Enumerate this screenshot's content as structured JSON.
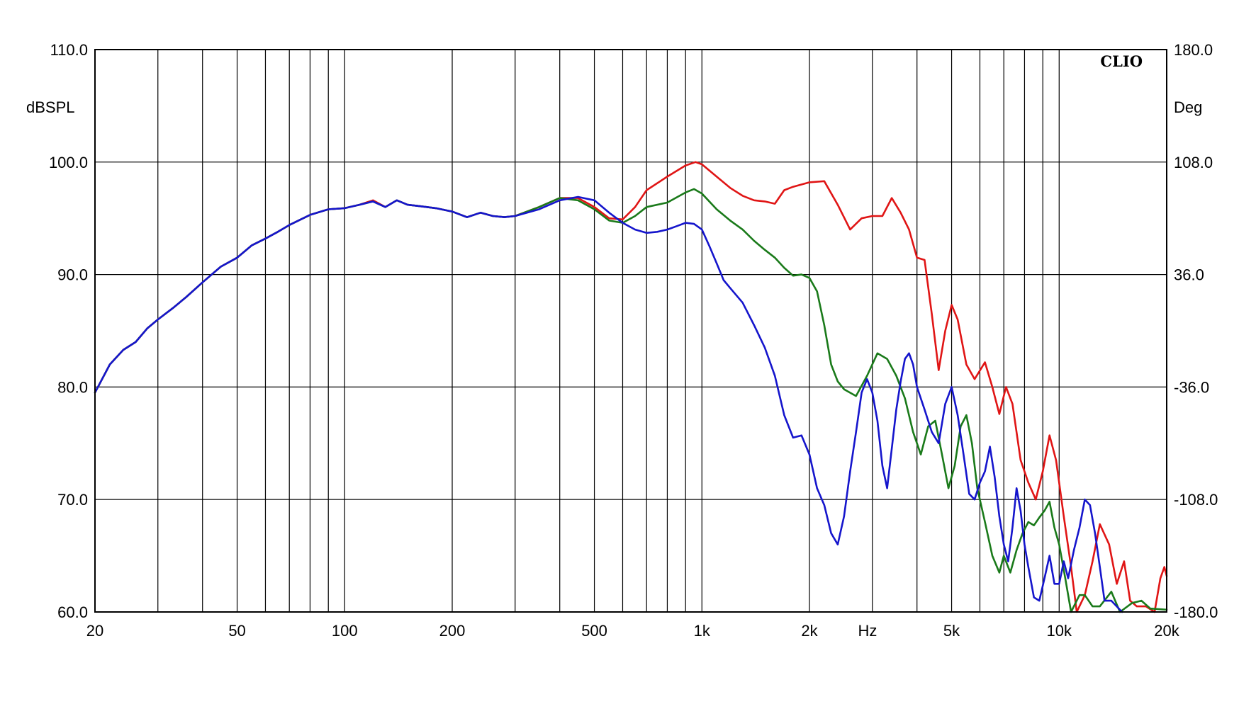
{
  "chart_data": {
    "type": "line",
    "title": "",
    "brand_label": "CLIO",
    "xlabel": "Hz",
    "ylabel_left": "dBSPL",
    "ylabel_right": "Deg",
    "x_scale": "log",
    "xlim": [
      20,
      20000
    ],
    "ylim": [
      60,
      110
    ],
    "ylim_right": [
      -180,
      180
    ],
    "grid": true,
    "x_ticks": [
      {
        "value": 20,
        "label": "20"
      },
      {
        "value": 50,
        "label": "50"
      },
      {
        "value": 100,
        "label": "100"
      },
      {
        "value": 200,
        "label": "200"
      },
      {
        "value": 500,
        "label": "500"
      },
      {
        "value": 1000,
        "label": "1k"
      },
      {
        "value": 2000,
        "label": "2k"
      },
      {
        "value": 5000,
        "label": "5k"
      },
      {
        "value": 10000,
        "label": "10k"
      },
      {
        "value": 20000,
        "label": "20k"
      }
    ],
    "y_ticks_left": [
      "60.0",
      "70.0",
      "80.0",
      "90.0",
      "100.0",
      "110.0"
    ],
    "y_ticks_right": [
      "-180.0",
      "-108.0",
      "-36.0",
      "36.0",
      "108.0",
      "180.0"
    ],
    "series": [
      {
        "color": "#e01515",
        "points": [
          [
            20,
            79.5
          ],
          [
            22,
            82
          ],
          [
            24,
            83.3
          ],
          [
            26,
            84
          ],
          [
            28,
            85.2
          ],
          [
            30,
            86
          ],
          [
            33,
            87
          ],
          [
            36,
            88
          ],
          [
            40,
            89.3
          ],
          [
            45,
            90.7
          ],
          [
            50,
            91.5
          ],
          [
            55,
            92.6
          ],
          [
            60,
            93.2
          ],
          [
            65,
            93.8
          ],
          [
            70,
            94.4
          ],
          [
            80,
            95.3
          ],
          [
            90,
            95.8
          ],
          [
            100,
            95.9
          ],
          [
            110,
            96.2
          ],
          [
            120,
            96.6
          ],
          [
            130,
            96
          ],
          [
            140,
            96.6
          ],
          [
            150,
            96.2
          ],
          [
            160,
            96.1
          ],
          [
            180,
            95.9
          ],
          [
            200,
            95.6
          ],
          [
            220,
            95.1
          ],
          [
            240,
            95.5
          ],
          [
            260,
            95.2
          ],
          [
            280,
            95.1
          ],
          [
            300,
            95.2
          ],
          [
            350,
            96
          ],
          [
            400,
            96.8
          ],
          [
            450,
            96.8
          ],
          [
            500,
            96
          ],
          [
            550,
            95
          ],
          [
            600,
            94.9
          ],
          [
            650,
            96
          ],
          [
            700,
            97.5
          ],
          [
            800,
            98.7
          ],
          [
            900,
            99.7
          ],
          [
            960,
            100
          ],
          [
            1000,
            99.8
          ],
          [
            1100,
            98.7
          ],
          [
            1200,
            97.7
          ],
          [
            1300,
            97
          ],
          [
            1400,
            96.6
          ],
          [
            1500,
            96.5
          ],
          [
            1600,
            96.3
          ],
          [
            1700,
            97.5
          ],
          [
            1800,
            97.8
          ],
          [
            2000,
            98.2
          ],
          [
            2200,
            98.3
          ],
          [
            2400,
            96.2
          ],
          [
            2600,
            94
          ],
          [
            2800,
            95
          ],
          [
            3000,
            95.2
          ],
          [
            3200,
            95.2
          ],
          [
            3400,
            96.8
          ],
          [
            3600,
            95.5
          ],
          [
            3800,
            94
          ],
          [
            4000,
            91.5
          ],
          [
            4200,
            91.3
          ],
          [
            4400,
            86.5
          ],
          [
            4600,
            81.5
          ],
          [
            4800,
            85
          ],
          [
            5000,
            87.3
          ],
          [
            5200,
            86
          ],
          [
            5500,
            82
          ],
          [
            5800,
            80.7
          ],
          [
            6200,
            82.2
          ],
          [
            6500,
            80
          ],
          [
            6800,
            77.6
          ],
          [
            7100,
            80
          ],
          [
            7400,
            78.5
          ],
          [
            7800,
            73.5
          ],
          [
            8200,
            71.5
          ],
          [
            8600,
            70
          ],
          [
            9000,
            72.5
          ],
          [
            9400,
            75.7
          ],
          [
            9800,
            73.5
          ],
          [
            10300,
            68.5
          ],
          [
            10800,
            64
          ],
          [
            11200,
            60
          ],
          [
            11800,
            61.5
          ],
          [
            12400,
            64.5
          ],
          [
            13000,
            67.8
          ],
          [
            13800,
            66
          ],
          [
            14500,
            62.5
          ],
          [
            15200,
            64.5
          ],
          [
            15800,
            61
          ],
          [
            16500,
            60.5
          ],
          [
            17500,
            60.5
          ],
          [
            18500,
            60
          ],
          [
            19200,
            63
          ],
          [
            19700,
            64
          ],
          [
            20000,
            63.2
          ]
        ]
      },
      {
        "color": "#1a7a1a",
        "points": [
          [
            20,
            79.5
          ],
          [
            22,
            82
          ],
          [
            24,
            83.3
          ],
          [
            26,
            84
          ],
          [
            28,
            85.2
          ],
          [
            30,
            86
          ],
          [
            33,
            87
          ],
          [
            36,
            88
          ],
          [
            40,
            89.3
          ],
          [
            45,
            90.7
          ],
          [
            50,
            91.5
          ],
          [
            55,
            92.6
          ],
          [
            60,
            93.2
          ],
          [
            65,
            93.8
          ],
          [
            70,
            94.4
          ],
          [
            80,
            95.3
          ],
          [
            90,
            95.8
          ],
          [
            100,
            95.9
          ],
          [
            110,
            96.2
          ],
          [
            120,
            96.5
          ],
          [
            130,
            96
          ],
          [
            140,
            96.6
          ],
          [
            150,
            96.2
          ],
          [
            160,
            96.1
          ],
          [
            180,
            95.9
          ],
          [
            200,
            95.6
          ],
          [
            220,
            95.1
          ],
          [
            240,
            95.5
          ],
          [
            260,
            95.2
          ],
          [
            280,
            95.1
          ],
          [
            300,
            95.2
          ],
          [
            350,
            96
          ],
          [
            400,
            96.8
          ],
          [
            450,
            96.6
          ],
          [
            500,
            95.8
          ],
          [
            550,
            94.8
          ],
          [
            600,
            94.6
          ],
          [
            650,
            95.2
          ],
          [
            700,
            96
          ],
          [
            800,
            96.4
          ],
          [
            900,
            97.3
          ],
          [
            950,
            97.6
          ],
          [
            1000,
            97.2
          ],
          [
            1100,
            95.8
          ],
          [
            1200,
            94.8
          ],
          [
            1300,
            94
          ],
          [
            1400,
            93
          ],
          [
            1500,
            92.2
          ],
          [
            1600,
            91.5
          ],
          [
            1700,
            90.6
          ],
          [
            1800,
            89.9
          ],
          [
            1900,
            90
          ],
          [
            2000,
            89.7
          ],
          [
            2100,
            88.5
          ],
          [
            2200,
            85.5
          ],
          [
            2300,
            82
          ],
          [
            2400,
            80.5
          ],
          [
            2500,
            79.8
          ],
          [
            2700,
            79.2
          ],
          [
            2900,
            81
          ],
          [
            3100,
            83
          ],
          [
            3300,
            82.5
          ],
          [
            3500,
            81
          ],
          [
            3700,
            79
          ],
          [
            3900,
            76
          ],
          [
            4100,
            74
          ],
          [
            4300,
            76.5
          ],
          [
            4500,
            77
          ],
          [
            4700,
            74
          ],
          [
            4900,
            71
          ],
          [
            5100,
            73
          ],
          [
            5300,
            76.5
          ],
          [
            5500,
            77.5
          ],
          [
            5700,
            75
          ],
          [
            5900,
            71
          ],
          [
            6200,
            68
          ],
          [
            6500,
            65
          ],
          [
            6800,
            63.5
          ],
          [
            7000,
            65
          ],
          [
            7300,
            63.5
          ],
          [
            7600,
            65.5
          ],
          [
            7900,
            67
          ],
          [
            8200,
            68
          ],
          [
            8500,
            67.7
          ],
          [
            8800,
            68.4
          ],
          [
            9100,
            69
          ],
          [
            9400,
            69.8
          ],
          [
            9700,
            67.5
          ],
          [
            10000,
            66
          ],
          [
            10400,
            63
          ],
          [
            10800,
            60
          ],
          [
            11400,
            61.5
          ],
          [
            11800,
            61.5
          ],
          [
            12400,
            60.5
          ],
          [
            13000,
            60.5
          ],
          [
            14000,
            61.8
          ],
          [
            14800,
            60
          ],
          [
            16000,
            60.8
          ],
          [
            17000,
            61
          ],
          [
            18000,
            60.3
          ],
          [
            20000,
            60.2
          ]
        ]
      },
      {
        "color": "#1515cc",
        "points": [
          [
            20,
            79.5
          ],
          [
            22,
            82
          ],
          [
            24,
            83.3
          ],
          [
            26,
            84
          ],
          [
            28,
            85.2
          ],
          [
            30,
            86
          ],
          [
            33,
            87
          ],
          [
            36,
            88
          ],
          [
            40,
            89.3
          ],
          [
            45,
            90.7
          ],
          [
            50,
            91.5
          ],
          [
            55,
            92.6
          ],
          [
            60,
            93.2
          ],
          [
            65,
            93.8
          ],
          [
            70,
            94.4
          ],
          [
            80,
            95.3
          ],
          [
            90,
            95.8
          ],
          [
            100,
            95.9
          ],
          [
            110,
            96.2
          ],
          [
            120,
            96.5
          ],
          [
            130,
            96
          ],
          [
            140,
            96.6
          ],
          [
            150,
            96.2
          ],
          [
            160,
            96.1
          ],
          [
            180,
            95.9
          ],
          [
            200,
            95.6
          ],
          [
            220,
            95.1
          ],
          [
            240,
            95.5
          ],
          [
            260,
            95.2
          ],
          [
            280,
            95.1
          ],
          [
            300,
            95.2
          ],
          [
            350,
            95.8
          ],
          [
            400,
            96.6
          ],
          [
            450,
            96.9
          ],
          [
            500,
            96.6
          ],
          [
            550,
            95.5
          ],
          [
            600,
            94.6
          ],
          [
            650,
            94
          ],
          [
            700,
            93.7
          ],
          [
            750,
            93.8
          ],
          [
            800,
            94
          ],
          [
            850,
            94.3
          ],
          [
            900,
            94.6
          ],
          [
            950,
            94.5
          ],
          [
            1000,
            94
          ],
          [
            1050,
            92.5
          ],
          [
            1100,
            91
          ],
          [
            1150,
            89.5
          ],
          [
            1200,
            88.8
          ],
          [
            1300,
            87.5
          ],
          [
            1400,
            85.5
          ],
          [
            1500,
            83.5
          ],
          [
            1600,
            81
          ],
          [
            1700,
            77.5
          ],
          [
            1800,
            75.5
          ],
          [
            1900,
            75.7
          ],
          [
            2000,
            74
          ],
          [
            2100,
            71
          ],
          [
            2200,
            69.5
          ],
          [
            2300,
            67
          ],
          [
            2400,
            66
          ],
          [
            2500,
            68.5
          ],
          [
            2600,
            72.5
          ],
          [
            2700,
            76
          ],
          [
            2800,
            79.5
          ],
          [
            2900,
            80.7
          ],
          [
            3000,
            79.5
          ],
          [
            3100,
            77
          ],
          [
            3200,
            73
          ],
          [
            3300,
            71
          ],
          [
            3400,
            74.5
          ],
          [
            3500,
            78
          ],
          [
            3600,
            80.5
          ],
          [
            3700,
            82.5
          ],
          [
            3800,
            83
          ],
          [
            3900,
            82
          ],
          [
            4000,
            80
          ],
          [
            4200,
            78
          ],
          [
            4400,
            76
          ],
          [
            4600,
            75
          ],
          [
            4800,
            78.5
          ],
          [
            5000,
            80
          ],
          [
            5200,
            77.5
          ],
          [
            5400,
            74
          ],
          [
            5600,
            70.5
          ],
          [
            5800,
            70
          ],
          [
            6000,
            71.5
          ],
          [
            6200,
            72.5
          ],
          [
            6400,
            74.7
          ],
          [
            6600,
            72
          ],
          [
            6800,
            68.5
          ],
          [
            7000,
            66
          ],
          [
            7200,
            64.5
          ],
          [
            7400,
            67.5
          ],
          [
            7600,
            71
          ],
          [
            7800,
            69
          ],
          [
            8000,
            66
          ],
          [
            8200,
            64
          ],
          [
            8500,
            61.3
          ],
          [
            8800,
            61
          ],
          [
            9100,
            63
          ],
          [
            9400,
            65
          ],
          [
            9700,
            62.5
          ],
          [
            10000,
            62.5
          ],
          [
            10300,
            64.5
          ],
          [
            10600,
            63
          ],
          [
            11000,
            65.5
          ],
          [
            11400,
            67.5
          ],
          [
            11800,
            70
          ],
          [
            12200,
            69.5
          ],
          [
            12600,
            67
          ],
          [
            13000,
            64
          ],
          [
            13400,
            61
          ],
          [
            14000,
            61
          ],
          [
            15000,
            60
          ]
        ]
      }
    ]
  }
}
